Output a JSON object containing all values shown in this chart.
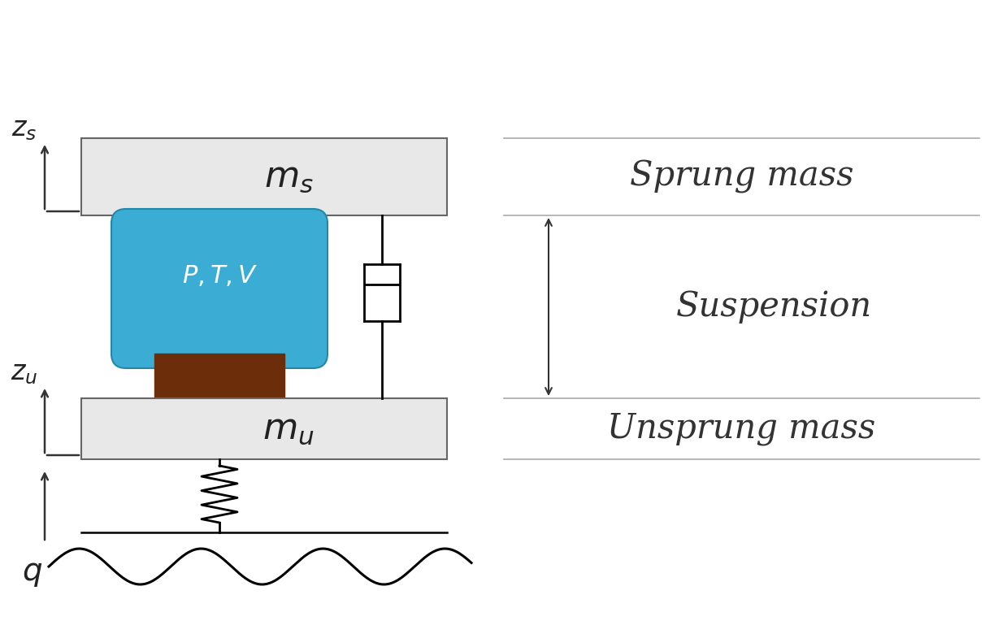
{
  "bg_color": "#ffffff",
  "box_color": "#e8e8e8",
  "box_edge": "#666666",
  "air_spring_color": "#3badd4",
  "air_spring_edge": "#2288aa",
  "damper_color": "#6b2d0a",
  "black_bar_color": "#111111",
  "axis_color": "#333333",
  "label_color": "#222222",
  "right_label_color": "#333333",
  "sep_line_color": "#aaaaaa",
  "sprung_mass_label": "$m_s$",
  "unsprung_mass_label": "$m_u$",
  "ptv_label": "$P, T, V$",
  "zs_label": "$z_s$",
  "zu_label": "$z_u$",
  "q_label": "$q$",
  "sprung_text": "Sprung mass",
  "suspension_text": "Suspension",
  "unsprung_text": "Unsprung mass",
  "figsize": [
    12.12,
    7.8
  ],
  "dpi": 100
}
